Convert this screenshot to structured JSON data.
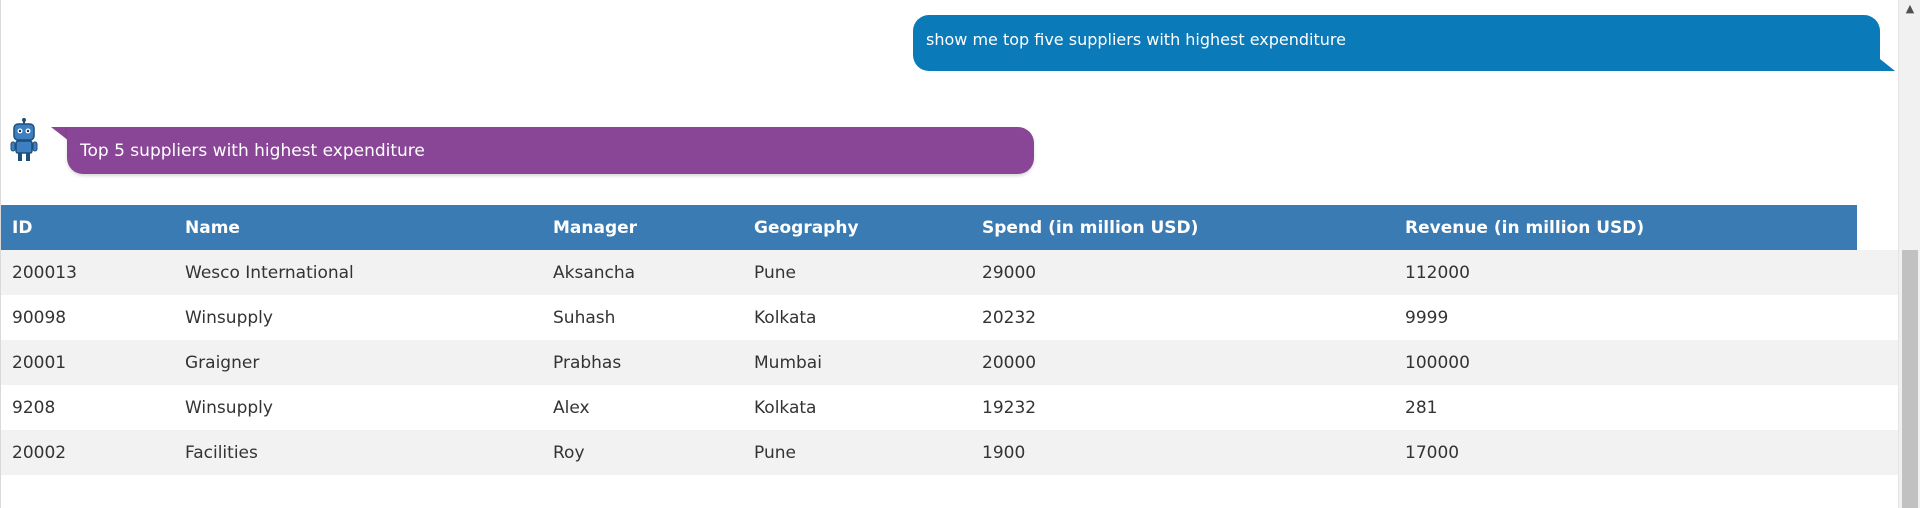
{
  "user_message": "show me top five suppliers with highest expenditure",
  "bot_message": "Top 5 suppliers with highest expenditure",
  "table": {
    "headers": [
      "ID",
      "Name",
      "Manager",
      "Geography",
      "Spend (in million USD)",
      "Revenue (in million USD)"
    ],
    "rows": [
      [
        "200013",
        "Wesco International",
        "Aksancha",
        "Pune",
        "29000",
        "112000"
      ],
      [
        "90098",
        "Winsupply",
        "Suhash",
        "Kolkata",
        "20232",
        "9999"
      ],
      [
        "20001",
        "Graigner",
        "Prabhas",
        "Mumbai",
        "20000",
        "100000"
      ],
      [
        "9208",
        "Winsupply",
        "Alex",
        "Kolkata",
        "19232",
        "281"
      ],
      [
        "20002",
        "Facilities",
        "Roy",
        "Pune",
        "1900",
        "17000"
      ]
    ]
  },
  "colors": {
    "user_bubble": "#0a7ab8",
    "bot_bubble": "#8a4696",
    "table_header": "#3b7bb3"
  },
  "icons": {
    "bot": "robot-icon",
    "scroll_up": "chevron-up-icon"
  }
}
